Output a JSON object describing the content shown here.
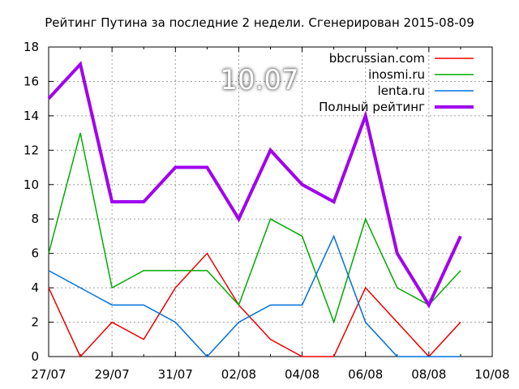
{
  "chart_data": {
    "type": "line",
    "title": "Рейтинг Путина за последние 2 недели. Сгенерирован 2015-08-09",
    "overlay_label": "10.07",
    "x": [
      "27/07",
      "28/07",
      "29/07",
      "30/07",
      "31/07",
      "01/08",
      "02/08",
      "03/08",
      "04/08",
      "05/08",
      "06/08",
      "07/08",
      "08/08",
      "09/08"
    ],
    "x_ticks": [
      "27/07",
      "29/07",
      "31/07",
      "02/08",
      "04/08",
      "06/08",
      "08/08",
      "10/08"
    ],
    "y_ticks": [
      "0",
      "2",
      "4",
      "6",
      "8",
      "10",
      "12",
      "14",
      "16",
      "18"
    ],
    "ylim": [
      0,
      18
    ],
    "grid": true,
    "legend_position": "top-right",
    "series": [
      {
        "name": "bbcrussian.com",
        "color": "#ee0000",
        "width": 1.5,
        "values": [
          4,
          0,
          2,
          1,
          4,
          6,
          3,
          1,
          0,
          0,
          4,
          2,
          0,
          2
        ]
      },
      {
        "name": "inosmi.ru",
        "color": "#00aa00",
        "width": 1.5,
        "values": [
          6,
          13,
          4,
          5,
          5,
          5,
          3,
          8,
          7,
          2,
          8,
          4,
          3,
          5
        ]
      },
      {
        "name": "lenta.ru",
        "color": "#0070dd",
        "width": 1.5,
        "values": [
          5,
          4,
          3,
          3,
          2,
          0,
          2,
          3,
          3,
          7,
          2,
          0,
          0,
          0
        ]
      },
      {
        "name": "Полный рейтинг",
        "color": "#a000ee",
        "width": 4,
        "values": [
          15,
          17,
          9,
          9,
          11,
          11,
          8,
          12,
          10,
          9,
          14,
          6,
          3,
          7
        ]
      }
    ]
  }
}
